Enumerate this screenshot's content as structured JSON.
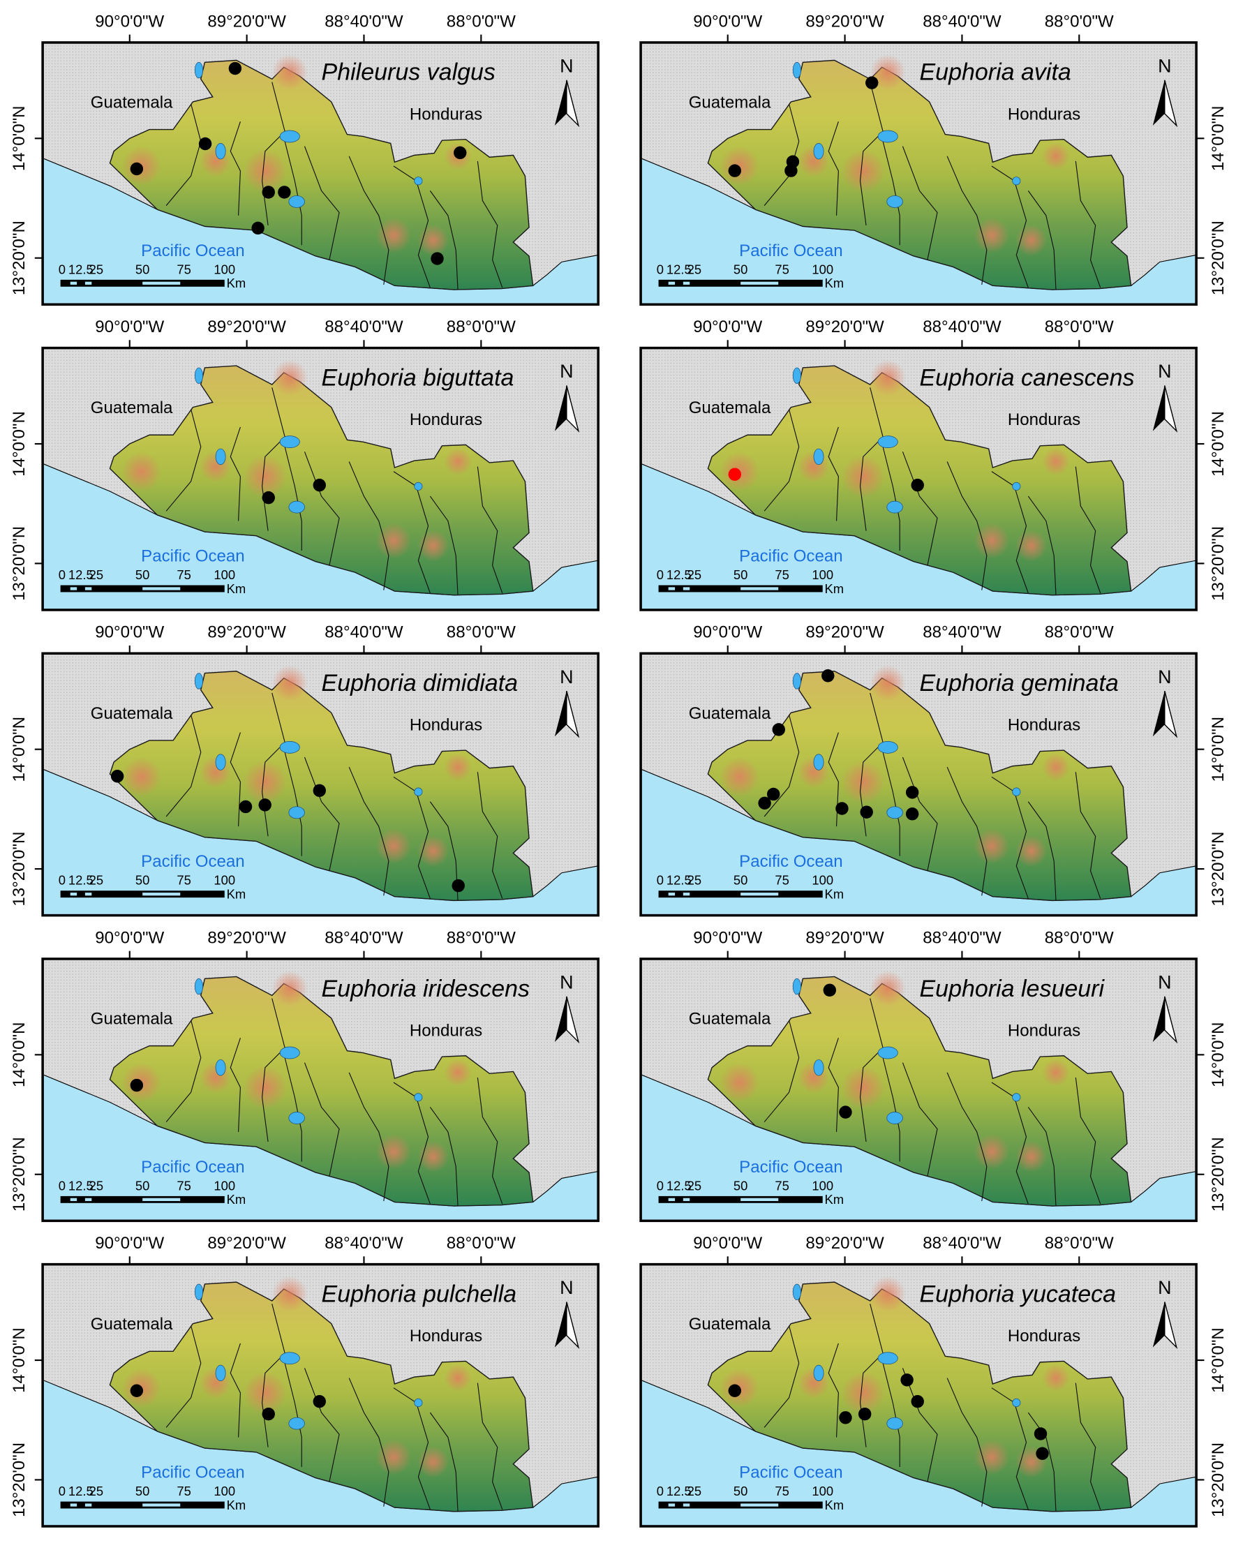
{
  "figure": {
    "lon_ticks": [
      "90°0'0\"W",
      "89°20'0\"W",
      "88°40'0\"W",
      "88°0'0\"W"
    ],
    "lat_ticks": [
      "14°0'0\"N",
      "13°20'0\"N"
    ],
    "labels": {
      "guatemala": "Guatemala",
      "honduras": "Honduras",
      "ocean": "Pacific Ocean",
      "north": "N"
    },
    "scale_bar": {
      "ticks": [
        "0",
        "12.5",
        "25",
        "50",
        "75",
        "100"
      ],
      "unit": "Km"
    },
    "colors": {
      "ocean": "#aee4f7",
      "land_background": "#d9d9d9",
      "record": "#000000",
      "highlight_record": "#ff0000",
      "ocean_label": "#1a6fe0"
    }
  },
  "panels": [
    {
      "species": "Phileurus valgus",
      "records": [
        {
          "lon": -89.4,
          "lat": 14.39
        },
        {
          "lon": -89.57,
          "lat": 13.97
        },
        {
          "lon": -89.96,
          "lat": 13.83
        },
        {
          "lon": -89.21,
          "lat": 13.7
        },
        {
          "lon": -89.12,
          "lat": 13.7
        },
        {
          "lon": -89.27,
          "lat": 13.5
        },
        {
          "lon": -88.12,
          "lat": 13.92
        },
        {
          "lon": -88.25,
          "lat": 13.33
        }
      ]
    },
    {
      "species": "Euphoria avita",
      "records": [
        {
          "lon": -89.18,
          "lat": 14.31
        },
        {
          "lon": -89.96,
          "lat": 13.82
        },
        {
          "lon": -89.63,
          "lat": 13.87
        },
        {
          "lon": -89.64,
          "lat": 13.82
        }
      ]
    },
    {
      "species": "Euphoria biguttata",
      "records": [
        {
          "lon": -89.21,
          "lat": 13.7
        },
        {
          "lon": -88.92,
          "lat": 13.77
        }
      ]
    },
    {
      "species": "Euphoria canescens",
      "records": [
        {
          "lon": -89.96,
          "lat": 13.83,
          "highlight": true
        },
        {
          "lon": -88.92,
          "lat": 13.77
        }
      ]
    },
    {
      "species": "Euphoria dimidiata",
      "records": [
        {
          "lon": -90.07,
          "lat": 13.85
        },
        {
          "lon": -89.34,
          "lat": 13.68
        },
        {
          "lon": -89.23,
          "lat": 13.69
        },
        {
          "lon": -88.92,
          "lat": 13.77
        },
        {
          "lon": -88.13,
          "lat": 13.24
        }
      ]
    },
    {
      "species": "Euphoria geminata",
      "records": [
        {
          "lon": -89.43,
          "lat": 14.41
        },
        {
          "lon": -89.71,
          "lat": 14.11
        },
        {
          "lon": -89.74,
          "lat": 13.75
        },
        {
          "lon": -89.79,
          "lat": 13.7
        },
        {
          "lon": -89.35,
          "lat": 13.67
        },
        {
          "lon": -89.21,
          "lat": 13.65
        },
        {
          "lon": -88.95,
          "lat": 13.76
        },
        {
          "lon": -88.95,
          "lat": 13.64
        }
      ]
    },
    {
      "species": "Euphoria iridescens",
      "records": [
        {
          "lon": -89.96,
          "lat": 13.83
        }
      ]
    },
    {
      "species": "Euphoria lesueuri",
      "records": [
        {
          "lon": -89.42,
          "lat": 14.36
        },
        {
          "lon": -89.33,
          "lat": 13.68
        }
      ]
    },
    {
      "species": "Euphoria pulchella",
      "records": [
        {
          "lon": -89.96,
          "lat": 13.83
        },
        {
          "lon": -89.21,
          "lat": 13.7
        },
        {
          "lon": -88.92,
          "lat": 13.77
        }
      ]
    },
    {
      "species": "Euphoria yucateca",
      "records": [
        {
          "lon": -89.96,
          "lat": 13.83
        },
        {
          "lon": -88.98,
          "lat": 13.89
        },
        {
          "lon": -88.92,
          "lat": 13.77
        },
        {
          "lon": -89.33,
          "lat": 13.68
        },
        {
          "lon": -89.22,
          "lat": 13.7
        },
        {
          "lon": -88.22,
          "lat": 13.59
        },
        {
          "lon": -88.21,
          "lat": 13.48
        }
      ]
    }
  ]
}
